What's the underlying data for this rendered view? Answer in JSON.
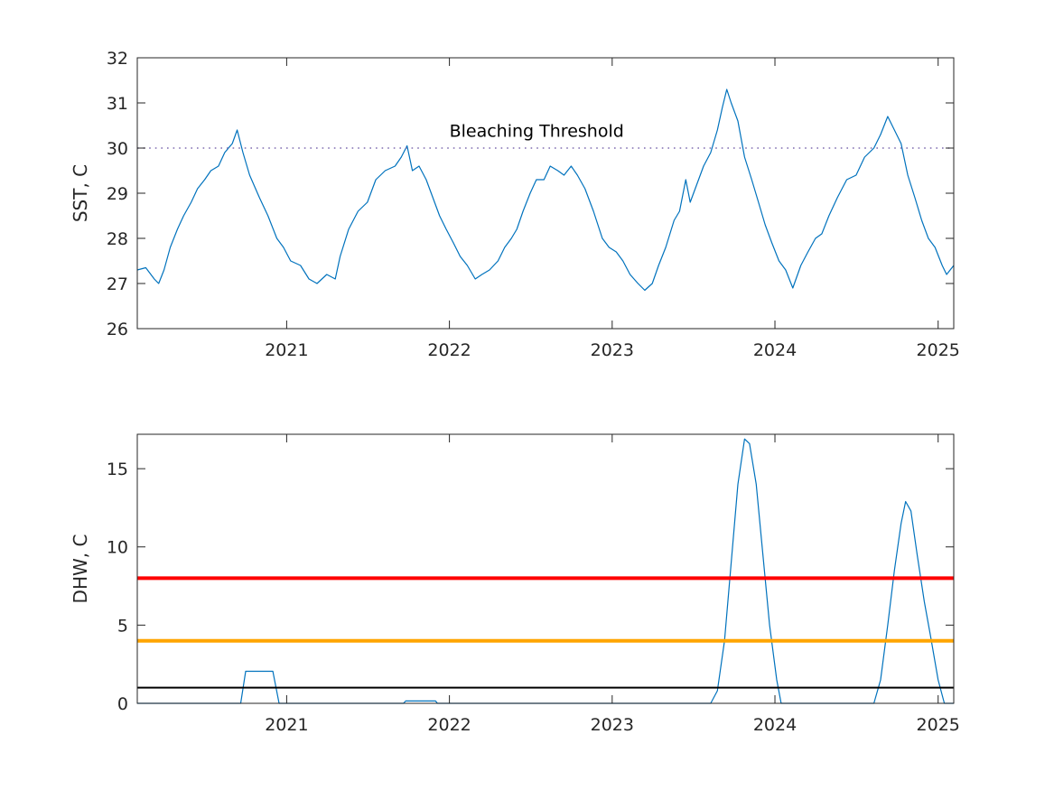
{
  "chart_data": [
    {
      "type": "line",
      "ylabel": "SST, C",
      "xlabel": "",
      "xlim": [
        "2020-02-01",
        "2025-02-05"
      ],
      "ylim": [
        26,
        32
      ],
      "xticks": [
        "2021",
        "2022",
        "2023",
        "2024",
        "2025"
      ],
      "yticks": [
        26,
        27,
        28,
        29,
        30,
        31,
        32
      ],
      "grid": false,
      "series": [
        {
          "color": "#0072BD",
          "points": [
            [
              "2020-02-01",
              27.3
            ],
            [
              "2020-02-20",
              27.35
            ],
            [
              "2020-03-10",
              27.1
            ],
            [
              "2020-03-20",
              27.0
            ],
            [
              "2020-04-01",
              27.3
            ],
            [
              "2020-04-15",
              27.8
            ],
            [
              "2020-05-01",
              28.2
            ],
            [
              "2020-05-15",
              28.5
            ],
            [
              "2020-06-01",
              28.8
            ],
            [
              "2020-06-15",
              29.1
            ],
            [
              "2020-07-01",
              29.3
            ],
            [
              "2020-07-15",
              29.5
            ],
            [
              "2020-08-01",
              29.6
            ],
            [
              "2020-08-15",
              29.9
            ],
            [
              "2020-09-01",
              30.1
            ],
            [
              "2020-09-12",
              30.4
            ],
            [
              "2020-09-25",
              29.9
            ],
            [
              "2020-10-10",
              29.4
            ],
            [
              "2020-11-01",
              28.9
            ],
            [
              "2020-11-20",
              28.5
            ],
            [
              "2020-12-10",
              28.0
            ],
            [
              "2020-12-25",
              27.8
            ],
            [
              "2021-01-10",
              27.5
            ],
            [
              "2021-02-01",
              27.4
            ],
            [
              "2021-02-20",
              27.1
            ],
            [
              "2021-03-10",
              27.0
            ],
            [
              "2021-04-01",
              27.2
            ],
            [
              "2021-04-20",
              27.1
            ],
            [
              "2021-05-01",
              27.6
            ],
            [
              "2021-05-20",
              28.2
            ],
            [
              "2021-06-10",
              28.6
            ],
            [
              "2021-07-01",
              28.8
            ],
            [
              "2021-07-20",
              29.3
            ],
            [
              "2021-08-10",
              29.5
            ],
            [
              "2021-09-01",
              29.6
            ],
            [
              "2021-09-15",
              29.8
            ],
            [
              "2021-09-28",
              30.05
            ],
            [
              "2021-10-10",
              29.5
            ],
            [
              "2021-10-25",
              29.6
            ],
            [
              "2021-11-10",
              29.3
            ],
            [
              "2021-11-25",
              28.9
            ],
            [
              "2021-12-10",
              28.5
            ],
            [
              "2021-12-25",
              28.2
            ],
            [
              "2022-01-10",
              27.9
            ],
            [
              "2022-01-25",
              27.6
            ],
            [
              "2022-02-10",
              27.4
            ],
            [
              "2022-02-28",
              27.1
            ],
            [
              "2022-03-15",
              27.2
            ],
            [
              "2022-04-01",
              27.3
            ],
            [
              "2022-04-20",
              27.5
            ],
            [
              "2022-05-05",
              27.8
            ],
            [
              "2022-05-20",
              28.0
            ],
            [
              "2022-06-01",
              28.2
            ],
            [
              "2022-06-15",
              28.6
            ],
            [
              "2022-07-01",
              29.0
            ],
            [
              "2022-07-15",
              29.3
            ],
            [
              "2022-08-01",
              29.3
            ],
            [
              "2022-08-15",
              29.6
            ],
            [
              "2022-09-01",
              29.5
            ],
            [
              "2022-09-15",
              29.4
            ],
            [
              "2022-10-01",
              29.6
            ],
            [
              "2022-10-15",
              29.4
            ],
            [
              "2022-11-01",
              29.1
            ],
            [
              "2022-11-20",
              28.6
            ],
            [
              "2022-12-10",
              28.0
            ],
            [
              "2022-12-25",
              27.8
            ],
            [
              "2023-01-10",
              27.7
            ],
            [
              "2023-01-25",
              27.5
            ],
            [
              "2023-02-10",
              27.2
            ],
            [
              "2023-02-28",
              27.0
            ],
            [
              "2023-03-15",
              26.85
            ],
            [
              "2023-04-01",
              27.0
            ],
            [
              "2023-04-15",
              27.4
            ],
            [
              "2023-05-01",
              27.8
            ],
            [
              "2023-05-20",
              28.4
            ],
            [
              "2023-06-01",
              28.6
            ],
            [
              "2023-06-15",
              29.3
            ],
            [
              "2023-06-25",
              28.8
            ],
            [
              "2023-07-10",
              29.2
            ],
            [
              "2023-07-25",
              29.6
            ],
            [
              "2023-08-10",
              29.9
            ],
            [
              "2023-08-25",
              30.4
            ],
            [
              "2023-09-05",
              30.9
            ],
            [
              "2023-09-15",
              31.3
            ],
            [
              "2023-09-25",
              31.0
            ],
            [
              "2023-10-10",
              30.6
            ],
            [
              "2023-10-25",
              29.8
            ],
            [
              "2023-11-10",
              29.3
            ],
            [
              "2023-11-25",
              28.8
            ],
            [
              "2023-12-10",
              28.3
            ],
            [
              "2023-12-25",
              27.9
            ],
            [
              "2024-01-10",
              27.5
            ],
            [
              "2024-01-25",
              27.3
            ],
            [
              "2024-02-10",
              26.9
            ],
            [
              "2024-02-28",
              27.4
            ],
            [
              "2024-03-15",
              27.7
            ],
            [
              "2024-04-01",
              28.0
            ],
            [
              "2024-04-15",
              28.1
            ],
            [
              "2024-05-01",
              28.5
            ],
            [
              "2024-05-20",
              28.9
            ],
            [
              "2024-06-10",
              29.3
            ],
            [
              "2024-07-01",
              29.4
            ],
            [
              "2024-07-20",
              29.8
            ],
            [
              "2024-08-10",
              30.0
            ],
            [
              "2024-08-25",
              30.3
            ],
            [
              "2024-09-10",
              30.7
            ],
            [
              "2024-09-25",
              30.4
            ],
            [
              "2024-10-10",
              30.1
            ],
            [
              "2024-10-25",
              29.4
            ],
            [
              "2024-11-10",
              28.9
            ],
            [
              "2024-11-25",
              28.4
            ],
            [
              "2024-12-10",
              28.0
            ],
            [
              "2024-12-25",
              27.8
            ],
            [
              "2025-01-10",
              27.4
            ],
            [
              "2025-01-20",
              27.2
            ],
            [
              "2025-02-05",
              27.4
            ]
          ]
        },
        {
          "color": "#7E6BB0",
          "style": "dotted",
          "constant": 30
        }
      ],
      "annotations": [
        {
          "text": "Bleaching Threshold",
          "x": "2022-01-01",
          "y": 30.25
        }
      ]
    },
    {
      "type": "line",
      "ylabel": "DHW, C",
      "xlabel": "",
      "xlim": [
        "2020-02-01",
        "2025-02-05"
      ],
      "ylim": [
        0,
        17.2
      ],
      "xticks": [
        "2021",
        "2022",
        "2023",
        "2024",
        "2025"
      ],
      "yticks": [
        0,
        5,
        10,
        15
      ],
      "grid": false,
      "series": [
        {
          "color": "#0072BD",
          "points": [
            [
              "2020-02-01",
              0
            ],
            [
              "2020-09-20",
              0
            ],
            [
              "2020-10-01",
              2.05
            ],
            [
              "2020-12-01",
              2.05
            ],
            [
              "2020-12-15",
              0
            ],
            [
              "2021-09-20",
              0
            ],
            [
              "2021-09-25",
              0.15
            ],
            [
              "2021-12-01",
              0.15
            ],
            [
              "2021-12-05",
              0
            ],
            [
              "2023-08-10",
              0
            ],
            [
              "2023-08-25",
              0.8
            ],
            [
              "2023-09-10",
              4.0
            ],
            [
              "2023-09-25",
              9.0
            ],
            [
              "2023-10-10",
              14.0
            ],
            [
              "2023-10-25",
              16.9
            ],
            [
              "2023-11-05",
              16.6
            ],
            [
              "2023-11-20",
              14.0
            ],
            [
              "2023-12-05",
              9.5
            ],
            [
              "2023-12-20",
              5.0
            ],
            [
              "2024-01-05",
              1.5
            ],
            [
              "2024-01-15",
              0
            ],
            [
              "2024-08-10",
              0
            ],
            [
              "2024-08-25",
              1.5
            ],
            [
              "2024-09-10",
              5.0
            ],
            [
              "2024-09-25",
              8.5
            ],
            [
              "2024-10-10",
              11.5
            ],
            [
              "2024-10-20",
              12.9
            ],
            [
              "2024-11-01",
              12.3
            ],
            [
              "2024-11-15",
              9.5
            ],
            [
              "2024-12-01",
              6.5
            ],
            [
              "2024-12-15",
              4.3
            ],
            [
              "2025-01-01",
              1.5
            ],
            [
              "2025-01-15",
              0
            ],
            [
              "2025-02-05",
              0
            ]
          ]
        },
        {
          "color": "#FF0000",
          "constant": 8
        },
        {
          "color": "#FFA500",
          "constant": 4
        },
        {
          "color": "#000000",
          "constant": 1
        }
      ]
    }
  ]
}
